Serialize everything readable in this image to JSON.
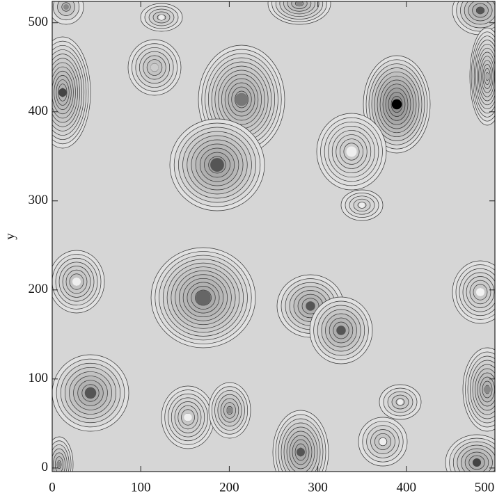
{
  "chart_data": {
    "type": "image",
    "ylabel": "y",
    "xlim": [
      0,
      500
    ],
    "ylim": [
      -4,
      524
    ],
    "xticks": [
      0,
      100,
      200,
      300,
      400,
      500
    ],
    "yticks": [
      0,
      100,
      200,
      300,
      400,
      500
    ]
  }
}
